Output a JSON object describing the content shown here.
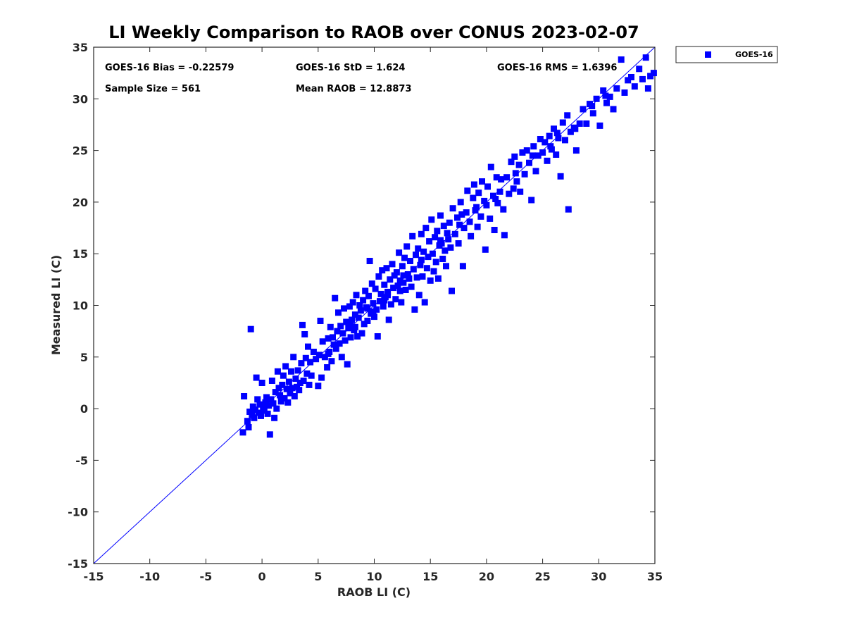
{
  "chart_data": {
    "type": "scatter",
    "title": "LI Weekly Comparison to RAOB over CONUS 2023-02-07",
    "xlabel": "RAOB LI (C)",
    "ylabel": "Measured LI (C)",
    "xlim": [
      -15,
      35
    ],
    "ylim": [
      -15,
      35
    ],
    "xticks": [
      "-15",
      "-10",
      "-5",
      "0",
      "5",
      "10",
      "15",
      "20",
      "25",
      "30",
      "35"
    ],
    "yticks": [
      "-15",
      "-10",
      "-5",
      "0",
      "5",
      "10",
      "15",
      "20",
      "25",
      "30",
      "35"
    ],
    "grid": false,
    "legend_position": "outside-top-right",
    "stats": {
      "bias": "GOES-16 Bias = -0.22579",
      "std": "GOES-16 StD = 1.624",
      "rms": "GOES-16 RMS = 1.6396",
      "sample_size": "Sample Size = 561",
      "mean_raob": "Mean RAOB = 12.8873"
    },
    "reference_line": {
      "name": "1:1",
      "x": [
        -15,
        35
      ],
      "y": [
        -15,
        35
      ],
      "color": "#0000ff"
    },
    "series": [
      {
        "name": "GOES-16",
        "color": "#0000ff",
        "marker": "square",
        "points": [
          [
            -1.7,
            -2.3
          ],
          [
            -1.6,
            1.2
          ],
          [
            -1.3,
            -1.2
          ],
          [
            -1.2,
            -1.8
          ],
          [
            -1.1,
            -0.3
          ],
          [
            -1.0,
            7.7
          ],
          [
            -0.9,
            -0.6
          ],
          [
            -0.8,
            0.2
          ],
          [
            -0.7,
            -0.9
          ],
          [
            -0.6,
            -0.1
          ],
          [
            -0.5,
            3.0
          ],
          [
            -0.4,
            0.9
          ],
          [
            -0.3,
            -0.4
          ],
          [
            -0.2,
            0.4
          ],
          [
            -0.1,
            -0.7
          ],
          [
            0.0,
            2.5
          ],
          [
            0.1,
            0.1
          ],
          [
            0.2,
            -0.2
          ],
          [
            0.3,
            0.6
          ],
          [
            0.4,
            1.1
          ],
          [
            0.5,
            -0.5
          ],
          [
            0.6,
            0.3
          ],
          [
            0.7,
            -2.5
          ],
          [
            0.8,
            0.9
          ],
          [
            0.9,
            2.7
          ],
          [
            1.0,
            0.5
          ],
          [
            1.1,
            -0.9
          ],
          [
            1.2,
            1.6
          ],
          [
            1.3,
            0.0
          ],
          [
            1.4,
            3.6
          ],
          [
            1.5,
            2.0
          ],
          [
            1.6,
            1.3
          ],
          [
            1.7,
            0.7
          ],
          [
            1.8,
            2.3
          ],
          [
            1.9,
            3.2
          ],
          [
            2.0,
            1.0
          ],
          [
            2.1,
            4.1
          ],
          [
            2.2,
            1.9
          ],
          [
            2.3,
            0.6
          ],
          [
            2.4,
            2.6
          ],
          [
            2.5,
            1.5
          ],
          [
            2.6,
            3.6
          ],
          [
            2.7,
            2.0
          ],
          [
            2.8,
            5.0
          ],
          [
            2.9,
            1.2
          ],
          [
            3.0,
            2.9
          ],
          [
            3.1,
            2.1
          ],
          [
            3.2,
            3.7
          ],
          [
            3.3,
            1.8
          ],
          [
            3.4,
            2.5
          ],
          [
            3.5,
            4.4
          ],
          [
            3.6,
            8.1
          ],
          [
            3.7,
            2.7
          ],
          [
            3.8,
            7.2
          ],
          [
            3.9,
            4.9
          ],
          [
            4.0,
            3.4
          ],
          [
            4.1,
            6.0
          ],
          [
            4.2,
            2.3
          ],
          [
            4.3,
            4.5
          ],
          [
            4.4,
            3.2
          ],
          [
            4.6,
            5.5
          ],
          [
            4.8,
            4.8
          ],
          [
            5.0,
            2.2
          ],
          [
            5.1,
            5.2
          ],
          [
            5.2,
            8.5
          ],
          [
            5.3,
            3.0
          ],
          [
            5.4,
            6.5
          ],
          [
            5.6,
            5.0
          ],
          [
            5.8,
            4.0
          ],
          [
            5.9,
            6.8
          ],
          [
            6.0,
            5.5
          ],
          [
            6.1,
            7.9
          ],
          [
            6.2,
            4.6
          ],
          [
            6.4,
            6.2
          ],
          [
            6.5,
            10.7
          ],
          [
            6.6,
            5.8
          ],
          [
            6.7,
            7.5
          ],
          [
            6.8,
            9.3
          ],
          [
            6.9,
            6.3
          ],
          [
            7.0,
            8.0
          ],
          [
            7.1,
            5.0
          ],
          [
            7.2,
            7.3
          ],
          [
            7.3,
            9.7
          ],
          [
            7.4,
            6.6
          ],
          [
            7.5,
            8.4
          ],
          [
            7.6,
            4.3
          ],
          [
            7.7,
            7.8
          ],
          [
            7.8,
            9.9
          ],
          [
            7.9,
            6.9
          ],
          [
            8.0,
            8.6
          ],
          [
            8.1,
            10.3
          ],
          [
            8.2,
            7.6
          ],
          [
            8.3,
            9.1
          ],
          [
            8.4,
            11.0
          ],
          [
            8.5,
            7.0
          ],
          [
            8.6,
            8.8
          ],
          [
            8.7,
            10.0
          ],
          [
            8.8,
            9.5
          ],
          [
            8.9,
            7.3
          ],
          [
            9.0,
            10.5
          ],
          [
            9.1,
            8.2
          ],
          [
            9.2,
            11.4
          ],
          [
            9.3,
            9.8
          ],
          [
            9.4,
            8.5
          ],
          [
            9.5,
            10.9
          ],
          [
            9.6,
            14.3
          ],
          [
            9.7,
            9.2
          ],
          [
            9.8,
            12.1
          ],
          [
            9.9,
            10.2
          ],
          [
            10.0,
            8.9
          ],
          [
            10.1,
            11.6
          ],
          [
            10.2,
            9.6
          ],
          [
            10.3,
            7.0
          ],
          [
            10.4,
            12.8
          ],
          [
            10.5,
            10.4
          ],
          [
            10.6,
            11.1
          ],
          [
            10.7,
            13.4
          ],
          [
            10.8,
            9.9
          ],
          [
            10.9,
            12.0
          ],
          [
            11.0,
            10.8
          ],
          [
            11.1,
            13.6
          ],
          [
            11.2,
            11.3
          ],
          [
            11.3,
            8.6
          ],
          [
            11.4,
            12.5
          ],
          [
            11.5,
            10.1
          ],
          [
            11.6,
            14.0
          ],
          [
            11.7,
            11.7
          ],
          [
            11.8,
            12.9
          ],
          [
            11.9,
            10.6
          ],
          [
            12.0,
            13.2
          ],
          [
            12.1,
            11.9
          ],
          [
            12.2,
            15.1
          ],
          [
            12.3,
            12.4
          ],
          [
            12.4,
            10.3
          ],
          [
            12.5,
            13.8
          ],
          [
            12.6,
            12.2
          ],
          [
            12.7,
            14.6
          ],
          [
            12.8,
            11.5
          ],
          [
            12.9,
            15.7
          ],
          [
            13.0,
            13.0
          ],
          [
            13.1,
            12.6
          ],
          [
            13.2,
            14.3
          ],
          [
            13.3,
            11.8
          ],
          [
            13.4,
            16.7
          ],
          [
            13.5,
            13.5
          ],
          [
            13.6,
            9.6
          ],
          [
            13.7,
            14.9
          ],
          [
            13.8,
            12.7
          ],
          [
            13.9,
            15.5
          ],
          [
            14.0,
            11.0
          ],
          [
            14.1,
            13.9
          ],
          [
            14.2,
            16.9
          ],
          [
            14.3,
            12.8
          ],
          [
            14.4,
            15.2
          ],
          [
            14.5,
            10.3
          ],
          [
            14.6,
            17.5
          ],
          [
            14.7,
            13.6
          ],
          [
            14.8,
            14.7
          ],
          [
            14.9,
            16.2
          ],
          [
            15.0,
            12.4
          ],
          [
            15.1,
            18.3
          ],
          [
            15.2,
            15.0
          ],
          [
            15.3,
            13.3
          ],
          [
            15.4,
            16.6
          ],
          [
            15.5,
            14.2
          ],
          [
            15.6,
            17.2
          ],
          [
            15.7,
            12.6
          ],
          [
            15.8,
            15.8
          ],
          [
            15.9,
            18.7
          ],
          [
            16.0,
            16.0
          ],
          [
            16.1,
            14.5
          ],
          [
            16.2,
            17.7
          ],
          [
            16.3,
            15.3
          ],
          [
            16.4,
            13.8
          ],
          [
            16.5,
            17.0
          ],
          [
            16.6,
            16.4
          ],
          [
            16.7,
            18.0
          ],
          [
            16.8,
            15.6
          ],
          [
            16.9,
            11.4
          ],
          [
            17.0,
            19.4
          ],
          [
            17.2,
            16.9
          ],
          [
            17.4,
            18.5
          ],
          [
            17.5,
            16.0
          ],
          [
            17.7,
            20.0
          ],
          [
            17.8,
            18.8
          ],
          [
            17.9,
            13.8
          ],
          [
            18.0,
            17.5
          ],
          [
            18.2,
            19.0
          ],
          [
            18.3,
            21.1
          ],
          [
            18.5,
            18.1
          ],
          [
            18.6,
            16.7
          ],
          [
            18.8,
            20.4
          ],
          [
            18.9,
            21.7
          ],
          [
            19.0,
            19.2
          ],
          [
            19.2,
            17.6
          ],
          [
            19.3,
            20.9
          ],
          [
            19.5,
            18.6
          ],
          [
            19.6,
            22.0
          ],
          [
            19.8,
            20.1
          ],
          [
            19.9,
            15.4
          ],
          [
            20.0,
            19.7
          ],
          [
            20.1,
            21.5
          ],
          [
            20.3,
            18.4
          ],
          [
            20.4,
            23.4
          ],
          [
            20.6,
            20.6
          ],
          [
            20.7,
            17.3
          ],
          [
            20.9,
            22.4
          ],
          [
            21.0,
            19.9
          ],
          [
            21.2,
            21.0
          ],
          [
            21.3,
            22.2
          ],
          [
            21.5,
            19.3
          ],
          [
            21.6,
            16.8
          ],
          [
            21.8,
            22.4
          ],
          [
            22.0,
            20.8
          ],
          [
            22.2,
            23.9
          ],
          [
            22.4,
            21.3
          ],
          [
            22.5,
            24.4
          ],
          [
            22.7,
            22.0
          ],
          [
            22.9,
            23.6
          ],
          [
            23.0,
            21.0
          ],
          [
            23.2,
            24.8
          ],
          [
            23.4,
            22.7
          ],
          [
            23.6,
            25.0
          ],
          [
            23.8,
            23.8
          ],
          [
            24.0,
            20.2
          ],
          [
            24.2,
            25.4
          ],
          [
            24.4,
            23.0
          ],
          [
            24.6,
            24.5
          ],
          [
            24.8,
            26.1
          ],
          [
            25.0,
            24.8
          ],
          [
            25.2,
            25.8
          ],
          [
            25.4,
            24.0
          ],
          [
            25.6,
            26.4
          ],
          [
            25.8,
            25.1
          ],
          [
            26.0,
            27.1
          ],
          [
            26.2,
            24.6
          ],
          [
            26.4,
            26.2
          ],
          [
            26.6,
            22.5
          ],
          [
            26.8,
            27.7
          ],
          [
            27.0,
            26.0
          ],
          [
            27.2,
            28.4
          ],
          [
            27.3,
            19.3
          ],
          [
            27.5,
            26.8
          ],
          [
            27.8,
            27.2
          ],
          [
            28.0,
            25.0
          ],
          [
            28.3,
            27.6
          ],
          [
            28.6,
            29.0
          ],
          [
            28.9,
            27.6
          ],
          [
            29.2,
            29.5
          ],
          [
            29.5,
            28.6
          ],
          [
            29.8,
            30.0
          ],
          [
            30.1,
            27.4
          ],
          [
            30.4,
            30.8
          ],
          [
            30.7,
            29.6
          ],
          [
            31.0,
            30.2
          ],
          [
            31.3,
            29.0
          ],
          [
            31.6,
            31.0
          ],
          [
            32.0,
            33.8
          ],
          [
            32.3,
            30.6
          ],
          [
            32.6,
            31.8
          ],
          [
            32.9,
            32.1
          ],
          [
            33.2,
            31.2
          ],
          [
            33.6,
            32.9
          ],
          [
            33.9,
            31.9
          ],
          [
            34.2,
            34.0
          ],
          [
            34.4,
            31.0
          ],
          [
            34.6,
            32.2
          ],
          [
            34.9,
            32.5
          ],
          [
            6.3,
            6.9
          ],
          [
            7.9,
            8.1
          ],
          [
            9.4,
            9.7
          ],
          [
            10.9,
            10.5
          ],
          [
            12.6,
            12.9
          ],
          [
            14.2,
            14.4
          ],
          [
            15.9,
            16.3
          ],
          [
            17.6,
            17.8
          ],
          [
            19.1,
            19.5
          ],
          [
            20.8,
            20.3
          ],
          [
            22.6,
            22.8
          ],
          [
            24.1,
            24.5
          ],
          [
            25.7,
            25.4
          ],
          [
            26.3,
            26.7
          ],
          [
            27.9,
            27.1
          ],
          [
            29.4,
            29.3
          ],
          [
            30.6,
            30.3
          ],
          [
            9.9,
            9.4
          ],
          [
            11.2,
            11.0
          ],
          [
            12.3,
            11.4
          ],
          [
            8.3,
            7.9
          ],
          [
            5.9,
            5.3
          ]
        ]
      }
    ]
  }
}
